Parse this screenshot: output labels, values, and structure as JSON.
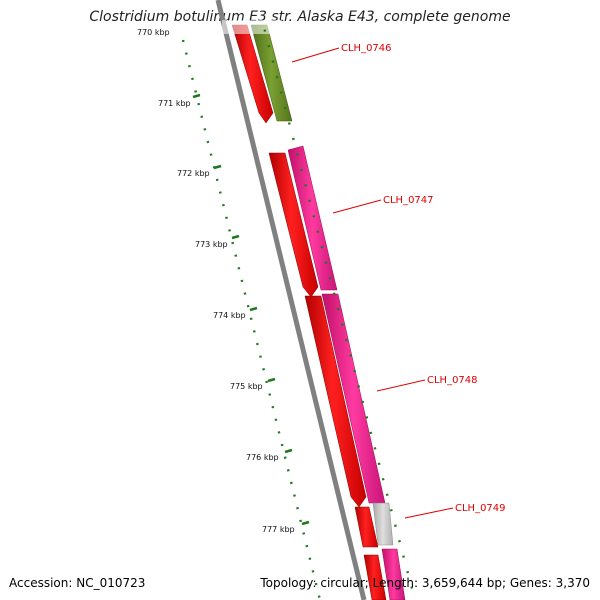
{
  "title": "Clostridium botulinum E3 str. Alaska E43, complete genome",
  "footer": {
    "accession": "Accession: NC_010723",
    "summary": "Topology: circular; Length: 3,659,644 bp; Genes: 3,370"
  },
  "ticks": [
    "770 kbp",
    "771 kbp",
    "772 kbp",
    "773 kbp",
    "774 kbp",
    "775 kbp",
    "776 kbp",
    "777 kbp"
  ],
  "gene_labels": [
    "CLH_0746",
    "CLH_0747",
    "CLH_0748",
    "CLH_0749"
  ],
  "colors": {
    "backbone": "#808080",
    "tick": "#1e7a1e",
    "cds": "#ff0000",
    "olive_feature": "#6b8e23",
    "magenta_feature": "#ff1493",
    "gray_feature": "#c0c0c0",
    "label": "#e00000"
  }
}
